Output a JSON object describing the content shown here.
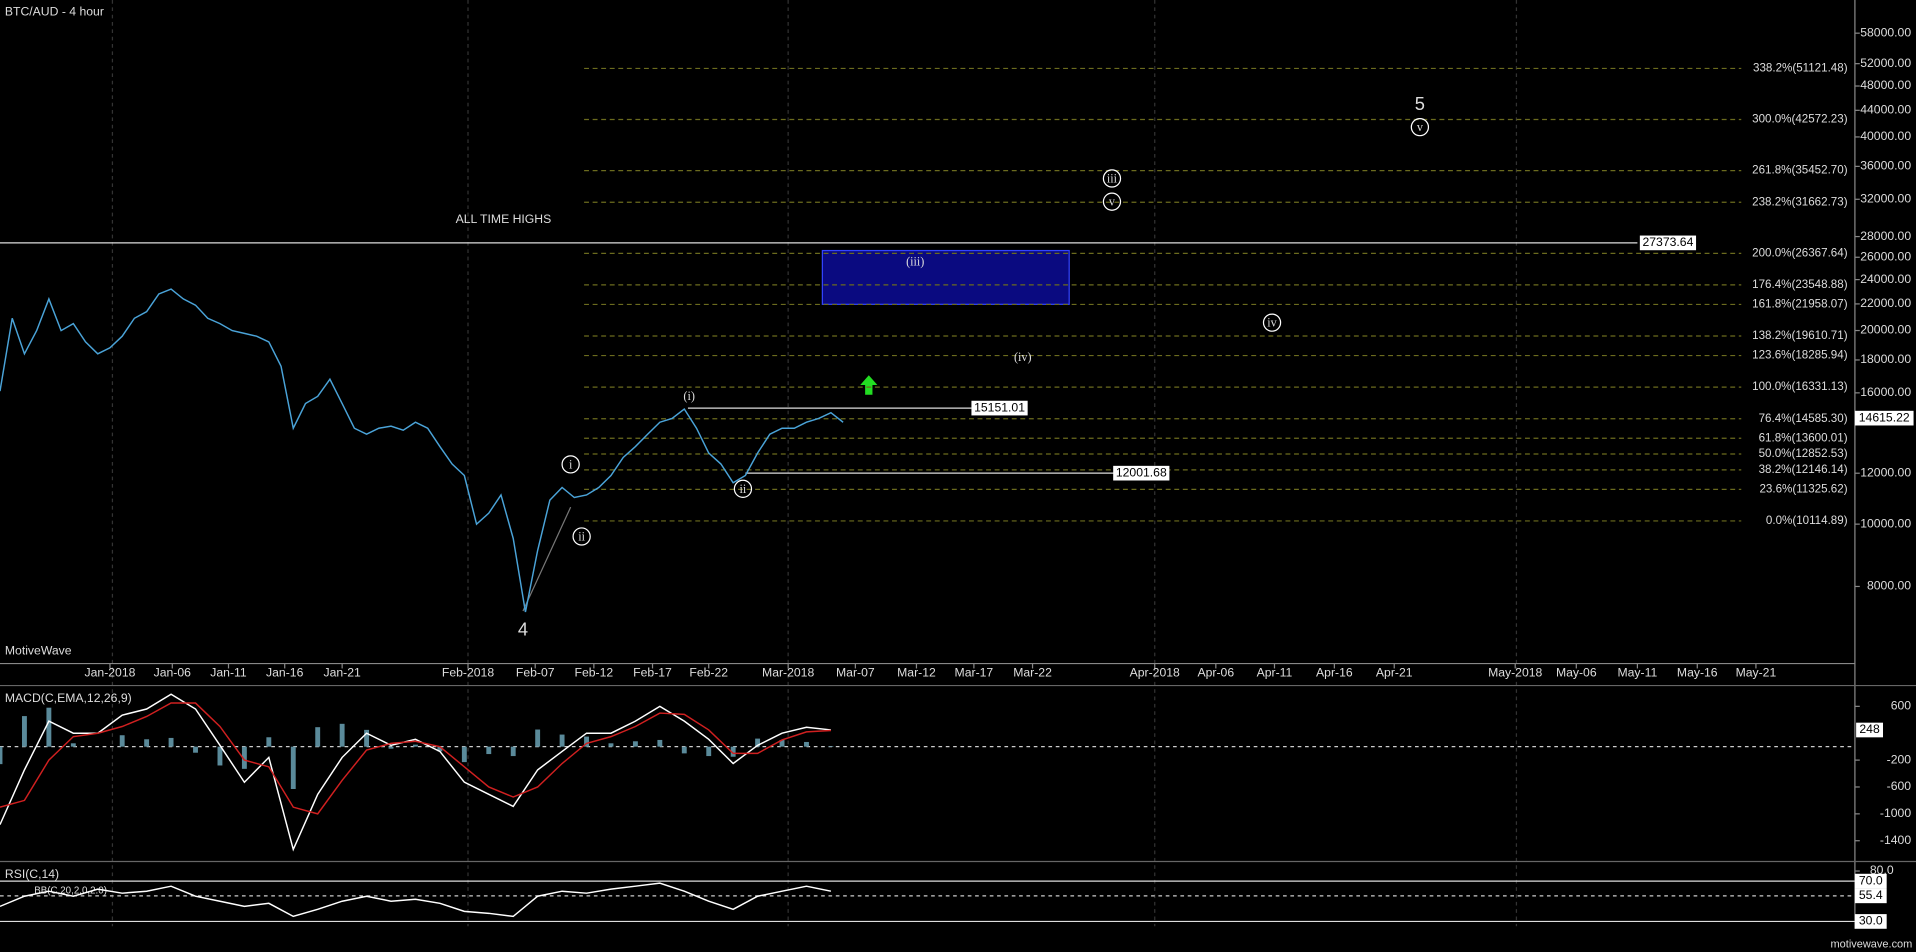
{
  "chart_data": [
    {
      "type": "line",
      "title": "BTC/AUD - 4 hour",
      "log_scale": true,
      "x_axis_labels": [
        "Jan-2018",
        "Jan-06",
        "Jan-11",
        "Jan-16",
        "Jan-21",
        "Feb-2018",
        "Feb-07",
        "Feb-12",
        "Feb-17",
        "Feb-22",
        "Mar-2018",
        "Mar-07",
        "Mar-12",
        "Mar-17",
        "Mar-22",
        "Apr-2018",
        "Apr-06",
        "Apr-11",
        "Apr-16",
        "Apr-21",
        "May-2018",
        "May-06",
        "May-11",
        "May-16",
        "May-21"
      ],
      "series": [
        {
          "color": "#4aa3d8",
          "values": [
            16100,
            20900,
            18400,
            20000,
            22400,
            20000,
            20500,
            19200,
            18400,
            18800,
            19600,
            20900,
            21400,
            22800,
            23200,
            22400,
            21900,
            20900,
            20500,
            20000,
            19800,
            19600,
            19200,
            17600,
            14100,
            15400,
            15800,
            16800,
            15400,
            14100,
            13800,
            14100,
            14200,
            14000,
            14400,
            14100,
            13200,
            12400,
            11900,
            10000,
            10400,
            11100,
            9500,
            7300,
            9100,
            10900,
            11400,
            11000,
            11100,
            11400,
            11900,
            12700,
            13200,
            13800,
            14400,
            14600,
            15100,
            14100,
            12900,
            12400,
            11600,
            11900,
            12900,
            13800,
            14100,
            14100,
            14400,
            14600,
            14900,
            14400
          ]
        }
      ],
      "ylim": [
        6070,
        65300
      ],
      "yticks": [
        {
          "value": 58000,
          "label": "58000.00"
        },
        {
          "value": 52000,
          "label": "52000.00"
        },
        {
          "value": 48000,
          "label": "48000.00"
        },
        {
          "value": 44000,
          "label": "44000.00"
        },
        {
          "value": 40000,
          "label": "40000.00"
        },
        {
          "value": 36000,
          "label": "36000.00"
        },
        {
          "value": 32000,
          "label": "32000.00"
        },
        {
          "value": 28000,
          "label": "28000.00"
        },
        {
          "value": 26000,
          "label": "26000.00"
        },
        {
          "value": 24000,
          "label": "24000.00"
        },
        {
          "value": 22000,
          "label": "22000.00"
        },
        {
          "value": 20000,
          "label": "20000.00"
        },
        {
          "value": 18000,
          "label": "18000.00"
        },
        {
          "value": 16000,
          "label": "16000.00"
        },
        {
          "value": 12000,
          "label": "12000.00"
        },
        {
          "value": 10000,
          "label": "10000.00"
        },
        {
          "value": 8000,
          "label": "8000.00"
        }
      ],
      "fib_levels": [
        {
          "value": 51121.48,
          "label": "338.2%(51121.48)"
        },
        {
          "value": 42572.23,
          "label": "300.0%(42572.23)"
        },
        {
          "value": 35452.7,
          "label": "261.8%(35452.70)"
        },
        {
          "value": 31662.73,
          "label": "238.2%(31662.73)"
        },
        {
          "value": 26367.64,
          "label": "200.0%(26367.64)"
        },
        {
          "value": 23548.88,
          "label": "176.4%(23548.88)"
        },
        {
          "value": 21958.07,
          "label": "161.8%(21958.07)"
        },
        {
          "value": 19610.71,
          "label": "138.2%(19610.71)"
        },
        {
          "value": 18285.94,
          "label": "123.6%(18285.94)"
        },
        {
          "value": 16331.13,
          "label": "100.0%(16331.13)"
        },
        {
          "value": 14585.3,
          "label": "76.4%(14585.30)"
        },
        {
          "value": 13600.01,
          "label": "61.8%(13600.01)"
        },
        {
          "value": 12852.53,
          "label": "50.0%(12852.53)"
        },
        {
          "value": 12146.14,
          "label": "38.2%(12146.14)"
        },
        {
          "value": 11325.62,
          "label": "23.6%(11325.62)"
        },
        {
          "value": 10114.89,
          "label": "0.0%(10114.89)"
        }
      ],
      "price_lines": [
        27373.64,
        15151.01,
        12001.68
      ],
      "current_price": 14615.22,
      "annotations": [
        "ALL TIME HIGHS",
        "MotiveWave",
        "motivewave.com"
      ],
      "wave_labels": [
        "i",
        "ii",
        "(i)",
        "ii",
        "(iii)",
        "iii",
        "v",
        "(iv)",
        "iv",
        "v",
        "5",
        "4"
      ]
    },
    {
      "type": "line",
      "title": "MACD(C,EMA,12,26,9)",
      "series": [
        {
          "color": "#ffffff",
          "values": [
            -1160,
            -345,
            380,
            200,
            200,
            470,
            560,
            780,
            560,
            20,
            -530,
            -160,
            -1530,
            -710,
            -160,
            200,
            20,
            110,
            -70,
            -530,
            -710,
            -890,
            -345,
            -70,
            200,
            200,
            380,
            600,
            380,
            110,
            -250,
            20,
            200,
            290,
            250
          ]
        },
        {
          "color": "#d02020",
          "values": [
            -900,
            -800,
            -200,
            150,
            200,
            300,
            450,
            650,
            650,
            300,
            -200,
            -300,
            -900,
            -1000,
            -500,
            -50,
            50,
            80,
            0,
            -300,
            -600,
            -750,
            -600,
            -250,
            50,
            150,
            300,
            500,
            480,
            250,
            -100,
            -100,
            100,
            220,
            240
          ]
        }
      ],
      "ylim": [
        -1673,
        873
      ],
      "yticks": [
        600,
        -200,
        -600,
        -1000,
        -1400
      ],
      "current": 248
    },
    {
      "type": "line",
      "title": "RSI(C,14)",
      "subtitle": "BB(C,20,2.0,2.0)",
      "series": [
        {
          "color": "#ffffff",
          "values": [
            45,
            55,
            60,
            55,
            62,
            58,
            60,
            65,
            55,
            50,
            45,
            48,
            35,
            42,
            50,
            55,
            50,
            52,
            48,
            40,
            38,
            35,
            55,
            60,
            58,
            62,
            65,
            68,
            60,
            50,
            42,
            55,
            60,
            65,
            60
          ]
        }
      ],
      "ylim": [
        25.2,
        85.8
      ],
      "yticks": [
        {
          "value": 80,
          "label": "80.0"
        }
      ],
      "levels": [
        {
          "value": 70,
          "label": "70.0"
        },
        {
          "value": 30,
          "label": "30.0"
        }
      ],
      "current": {
        "value": 55.4,
        "label": "55.4"
      }
    }
  ]
}
